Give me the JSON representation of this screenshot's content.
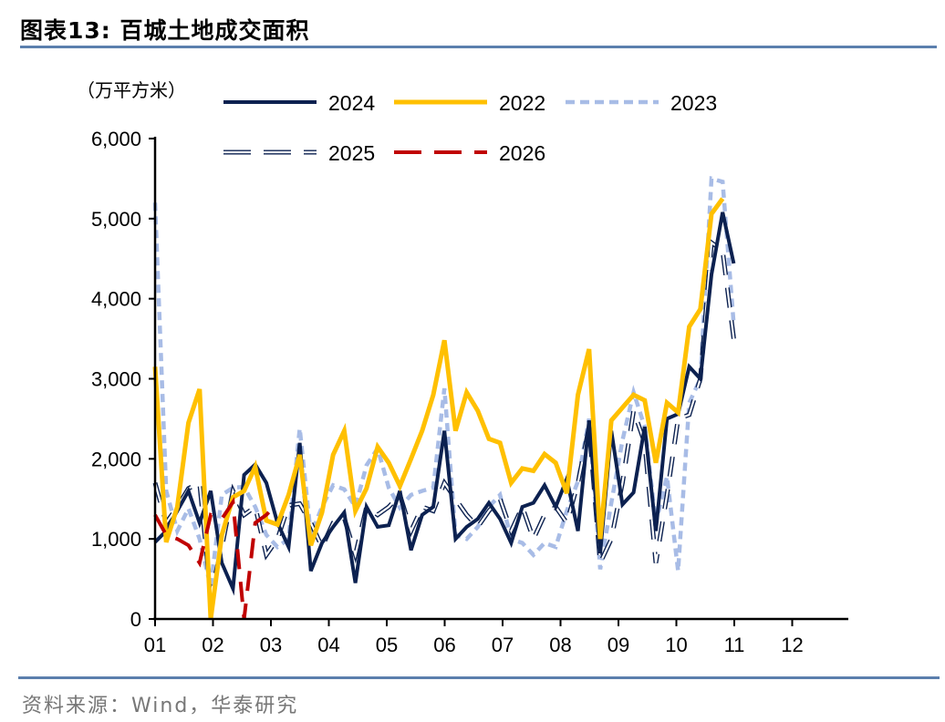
{
  "header": {
    "title": "图表13:  百城土地成交面积"
  },
  "footer": {
    "source": "资料来源：Wind，华泰研究"
  },
  "chart_data": {
    "type": "line",
    "title": "百城土地成交面积",
    "ylabel": "（万平方米）",
    "xlabel": "",
    "ylim": [
      0,
      6000
    ],
    "yticks": [
      0,
      1000,
      2000,
      3000,
      4000,
      5000,
      6000
    ],
    "ytick_labels": [
      "0",
      "1,000",
      "2,000",
      "3,000",
      "4,000",
      "5,000",
      "6,000"
    ],
    "xticks": [
      "01",
      "02",
      "03",
      "04",
      "05",
      "06",
      "07",
      "08",
      "09",
      "10",
      "11",
      "12"
    ],
    "x_unit": "week of year",
    "grid": false,
    "legend": "top",
    "series": [
      {
        "name": "2024",
        "color": "#0c2150",
        "style": "solid",
        "values": [
          960,
          1100,
          1350,
          1600,
          1200,
          1600,
          700,
          380,
          1800,
          1930,
          1700,
          1200,
          900,
          2200,
          600,
          950,
          1150,
          1330,
          450,
          1400,
          1150,
          1170,
          1600,
          860,
          1300,
          1400,
          2350,
          1000,
          1150,
          1250,
          1450,
          1250,
          950,
          1400,
          1450,
          1670,
          1400,
          1750,
          1100,
          2480,
          820,
          2350,
          1430,
          1580,
          2400,
          1100,
          2500,
          2560,
          3150,
          3000,
          4300,
          5080,
          4440
        ]
      },
      {
        "name": "2022",
        "color": "#ffc000",
        "style": "solid",
        "values": [
          3150,
          960,
          1400,
          2450,
          2870,
          0,
          1050,
          1520,
          1600,
          1900,
          1230,
          1180,
          1550,
          2050,
          920,
          1330,
          2050,
          2350,
          1350,
          1630,
          2150,
          1950,
          1660,
          2000,
          2350,
          2800,
          3480,
          2350,
          2830,
          2600,
          2250,
          2200,
          1700,
          1880,
          1850,
          2060,
          1950,
          1570,
          2800,
          3370,
          1000,
          2480,
          2640,
          2800,
          2730,
          1950,
          2700,
          2580,
          3650,
          3870,
          5060,
          5250
        ]
      },
      {
        "name": "2023",
        "color": "#a8bce6",
        "style": "dotted",
        "values": [
          5200,
          1600,
          1100,
          1380,
          1000,
          400,
          1550,
          1640,
          1650,
          1400,
          1050,
          900,
          1000,
          2380,
          1050,
          1400,
          1670,
          1620,
          1400,
          1920,
          2130,
          1640,
          1390,
          1550,
          1600,
          1640,
          2880,
          1050,
          1000,
          1150,
          1400,
          1550,
          1000,
          950,
          800,
          950,
          900,
          1350,
          1720,
          2500,
          620,
          1450,
          2230,
          2830,
          2400,
          1200,
          1780,
          600,
          2700,
          3000,
          5500,
          5460,
          3680
        ]
      },
      {
        "name": "2025",
        "color": "#8fa6cf",
        "style": "dashed-double",
        "values": [
          1700,
          1200,
          1400,
          1630,
          1700,
          300,
          900,
          1600,
          1300,
          1400,
          800,
          1000,
          1420,
          1440,
          1200,
          900,
          1200,
          1260,
          800,
          1400,
          1300,
          1400,
          1550,
          1100,
          1400,
          1350,
          1700,
          1500,
          1300,
          1150,
          1350,
          1500,
          1100,
          1400,
          1000,
          1300,
          1400,
          1200,
          1700,
          2400,
          700,
          1000,
          1700,
          2600,
          2200,
          700,
          1550,
          2500,
          2550,
          3000,
          4700,
          4600,
          3500
        ]
      },
      {
        "name": "2026",
        "color": "#c00000",
        "style": "dashed",
        "values": [
          1300,
          1050,
          1000,
          920,
          700,
          1300,
          1250,
          1460,
          0,
          1200,
          1300,
          1450
        ]
      }
    ]
  }
}
